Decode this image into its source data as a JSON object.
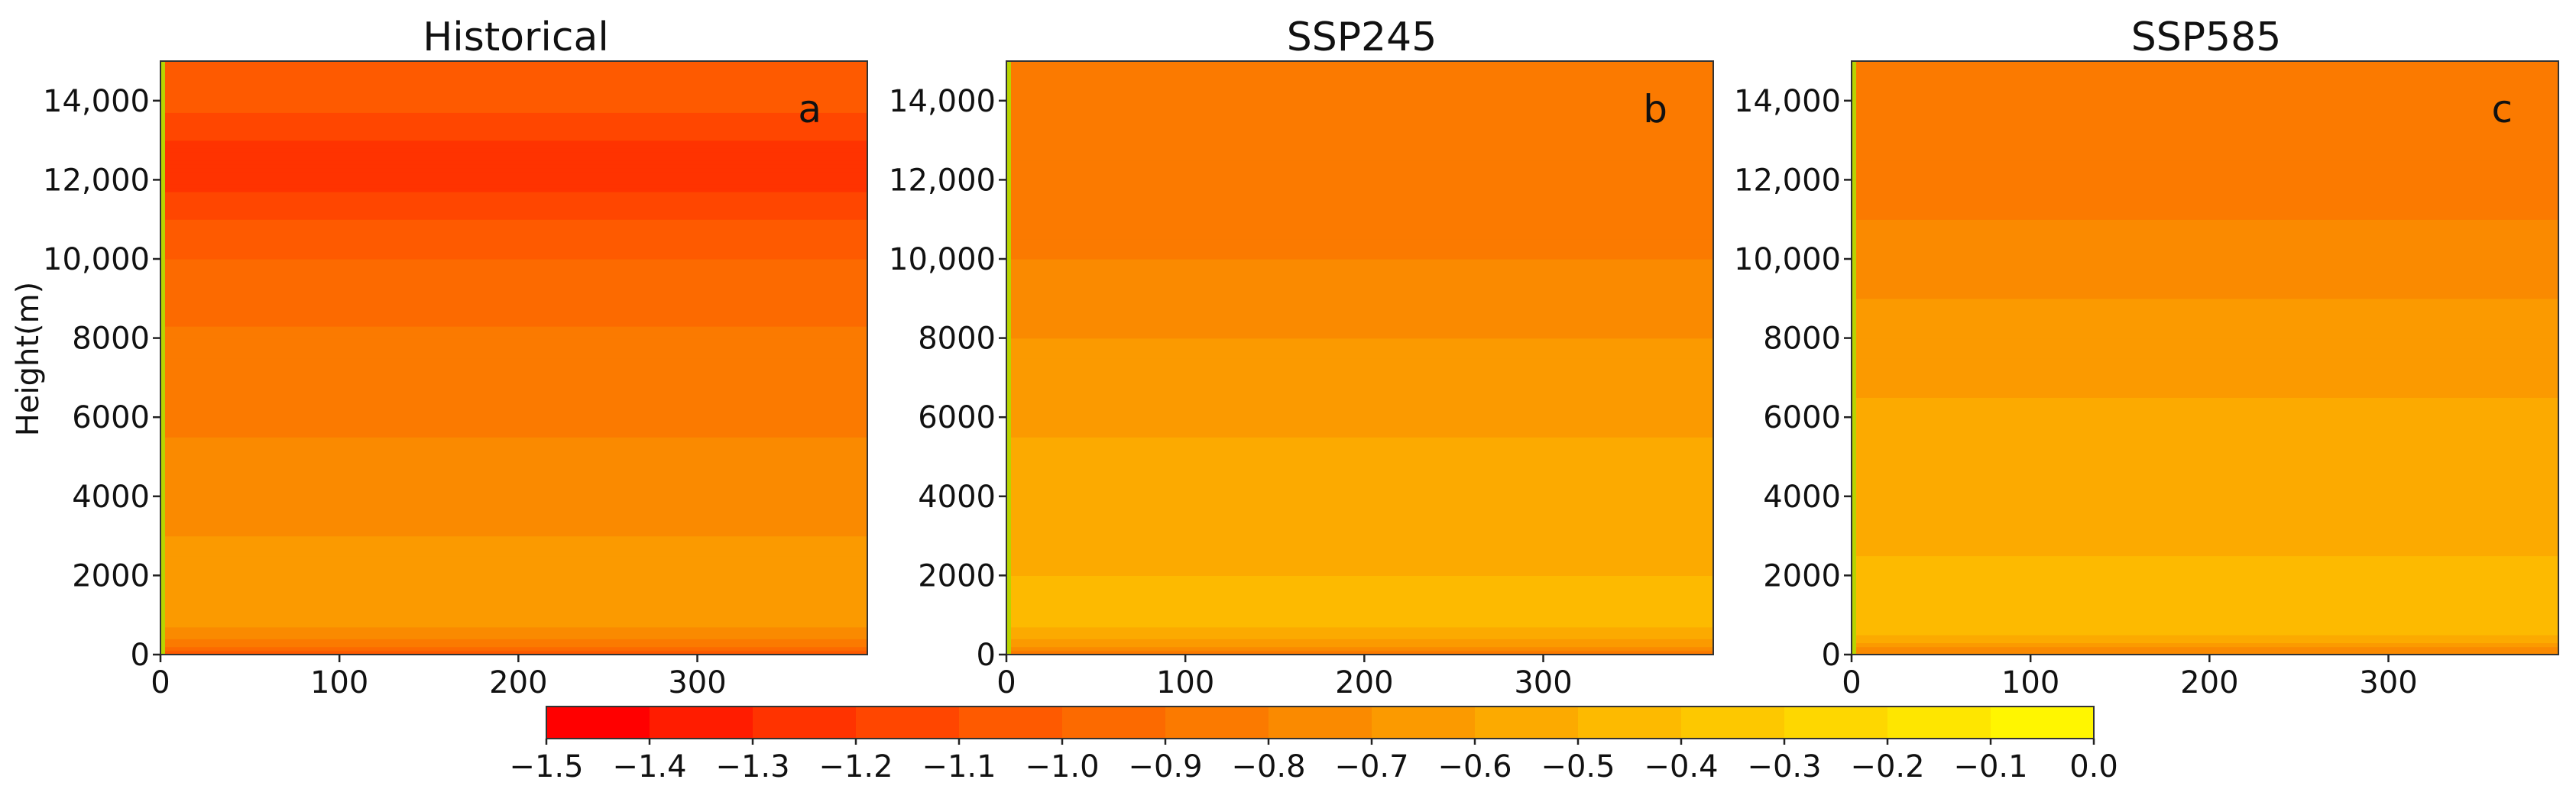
{
  "chart_data": [
    {
      "type": "contour",
      "title": "Historical",
      "panel_label": "a",
      "xlabel": "",
      "ylabel": "Height(m)",
      "xlim": [
        0,
        395
      ],
      "ylim": [
        0,
        15000
      ],
      "x_ticks": [
        0,
        100,
        200,
        300
      ],
      "x_tick_labels": [
        "0",
        "100",
        "200",
        "300"
      ],
      "y_ticks": [
        0,
        2000,
        4000,
        6000,
        8000,
        10000,
        12000,
        14000
      ],
      "y_tick_labels": [
        "0",
        "2000",
        "4000",
        "6000",
        "8000",
        "10,000",
        "12,000",
        "14,000"
      ],
      "profile_heights": [
        0,
        500,
        1000,
        2000,
        3000,
        4000,
        5000,
        6000,
        7000,
        8000,
        9000,
        10000,
        11000,
        12000,
        13000,
        14000,
        15000
      ],
      "profile_values": [
        -1.05,
        -0.75,
        -0.6,
        -0.65,
        -0.7,
        -0.75,
        -0.78,
        -0.82,
        -0.85,
        -0.88,
        -0.95,
        -1.0,
        -1.1,
        -1.25,
        -1.2,
        -1.05,
        -1.0
      ]
    },
    {
      "type": "contour",
      "title": "SSP245",
      "panel_label": "b",
      "xlabel": "",
      "ylabel": "",
      "xlim": [
        0,
        395
      ],
      "ylim": [
        0,
        15000
      ],
      "x_ticks": [
        0,
        100,
        200,
        300
      ],
      "x_tick_labels": [
        "0",
        "100",
        "200",
        "300"
      ],
      "y_ticks": [
        0,
        2000,
        4000,
        6000,
        8000,
        10000,
        12000,
        14000
      ],
      "y_tick_labels": [
        "0",
        "2000",
        "4000",
        "6000",
        "8000",
        "10,000",
        "12,000",
        "14,000"
      ],
      "profile_heights": [
        0,
        500,
        1000,
        2000,
        3000,
        4000,
        5000,
        6000,
        7000,
        8000,
        9000,
        10000,
        11000,
        12000,
        13000,
        14000,
        15000
      ],
      "profile_values": [
        -0.85,
        -0.55,
        -0.45,
        -0.5,
        -0.55,
        -0.6,
        -0.58,
        -0.62,
        -0.65,
        -0.7,
        -0.75,
        -0.8,
        -0.85,
        -0.9,
        -0.9,
        -0.85,
        -0.85
      ]
    },
    {
      "type": "contour",
      "title": "SSP585",
      "panel_label": "c",
      "xlabel": "",
      "ylabel": "",
      "xlim": [
        0,
        395
      ],
      "ylim": [
        0,
        15000
      ],
      "x_ticks": [
        0,
        100,
        200,
        300
      ],
      "x_tick_labels": [
        "0",
        "100",
        "200",
        "300"
      ],
      "y_ticks": [
        0,
        2000,
        4000,
        6000,
        8000,
        10000,
        12000,
        14000
      ],
      "y_tick_labels": [
        "0",
        "2000",
        "4000",
        "6000",
        "8000",
        "10,000",
        "12,000",
        "14,000"
      ],
      "profile_heights": [
        0,
        500,
        1000,
        2000,
        3000,
        4000,
        5000,
        6000,
        7000,
        8000,
        9000,
        10000,
        11000,
        12000,
        13000,
        14000,
        15000
      ],
      "profile_values": [
        -0.8,
        -0.5,
        -0.42,
        -0.48,
        -0.52,
        -0.55,
        -0.55,
        -0.58,
        -0.62,
        -0.66,
        -0.7,
        -0.75,
        -0.8,
        -0.85,
        -0.85,
        -0.82,
        -0.8
      ]
    }
  ],
  "colorbar": {
    "levels": [
      -1.5,
      -1.4,
      -1.3,
      -1.2,
      -1.1,
      -1.0,
      -0.9,
      -0.8,
      -0.7,
      -0.6,
      -0.5,
      -0.4,
      -0.3,
      -0.2,
      -0.1,
      0.0
    ],
    "tick_labels": [
      "−1.5",
      "−1.4",
      "−1.3",
      "−1.2",
      "−1.1",
      "−1.0",
      "−0.9",
      "−0.8",
      "−0.7",
      "−0.6",
      "−0.5",
      "−0.4",
      "−0.3",
      "−0.2",
      "−0.1",
      "0.0"
    ],
    "colors": [
      "#ff0000",
      "#ff1c00",
      "#ff3300",
      "#ff4600",
      "#fe5a00",
      "#fc6a00",
      "#fb7a00",
      "#fa8a00",
      "#fb9a00",
      "#fcaa00",
      "#fdba00",
      "#fdc800",
      "#fed700",
      "#fee600",
      "#fff600"
    ]
  }
}
